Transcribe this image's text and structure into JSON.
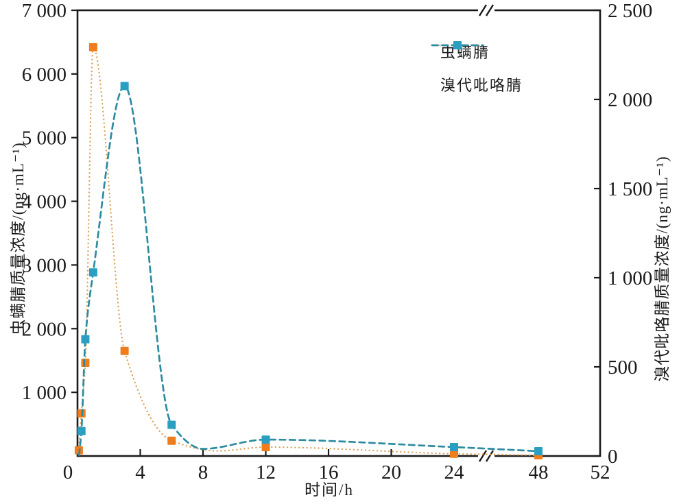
{
  "axes": {
    "x": {
      "label": "时间/h",
      "ticks": [
        {
          "v": 0,
          "label": "0"
        },
        {
          "v": 4,
          "label": "4"
        },
        {
          "v": 8,
          "label": "8"
        },
        {
          "v": 12,
          "label": "12"
        },
        {
          "v": 16,
          "label": "16"
        },
        {
          "v": 20,
          "label": "20"
        },
        {
          "v": 24,
          "label": "24"
        },
        {
          "v": 48,
          "label": "48"
        },
        {
          "v": 52,
          "label": "52"
        }
      ],
      "break_between": [
        24,
        48
      ]
    },
    "y_left": {
      "label": "虫螨腈质量浓度/(ng·mL⁻¹)",
      "range": [
        0,
        7000
      ],
      "ticks": [
        {
          "v": 1000,
          "label": "1 000"
        },
        {
          "v": 2000,
          "label": "2 000"
        },
        {
          "v": 3000,
          "label": "3 000"
        },
        {
          "v": 4000,
          "label": "4 000"
        },
        {
          "v": 5000,
          "label": "5 000"
        },
        {
          "v": 6000,
          "label": "6 000"
        },
        {
          "v": 7000,
          "label": "7 000"
        }
      ]
    },
    "y_right": {
      "label": "溴代吡咯腈质量浓度/(ng·mL⁻¹)",
      "range": [
        0,
        2500
      ],
      "ticks": [
        {
          "v": 0,
          "label": "0"
        },
        {
          "v": 500,
          "label": "500"
        },
        {
          "v": 1000,
          "label": "1 000"
        },
        {
          "v": 1500,
          "label": "1 500"
        },
        {
          "v": 2000,
          "label": "2 000"
        },
        {
          "v": 2500,
          "label": "2 500"
        }
      ]
    }
  },
  "chart_data": {
    "type": "line",
    "title": "",
    "xlabel": "时间/h",
    "x_axis_break": [
      24,
      48
    ],
    "grid": false,
    "legend_position": "upper-right-inside",
    "y_left_range": [
      0,
      7000
    ],
    "y_right_range": [
      0,
      2500
    ],
    "series": [
      {
        "name": "虫螨腈",
        "axis": "left",
        "ylabel": "虫螨腈质量浓度/(ng·mL⁻¹)",
        "marker": "square",
        "marker_color": "#ef7d1b",
        "line_color": "#dda25e",
        "line_style": "dotted",
        "x": [
          0.083,
          0.25,
          0.5,
          1,
          3,
          6,
          12,
          24,
          48
        ],
        "y": [
          90,
          670,
          1465,
          6420,
          1650,
          240,
          140,
          35,
          12
        ]
      },
      {
        "name": "溴代吡咯腈",
        "axis": "right",
        "ylabel": "溴代吡咯腈质量浓度/(ng·mL⁻¹)",
        "marker": "square",
        "marker_color": "#2a9fc1",
        "line_color": "#2c8ba0",
        "line_style": "dashed",
        "x": [
          0.25,
          0.5,
          1,
          3,
          6,
          12,
          24,
          48
        ],
        "y": [
          140,
          655,
          1030,
          2075,
          175,
          92,
          50,
          27
        ]
      }
    ]
  }
}
